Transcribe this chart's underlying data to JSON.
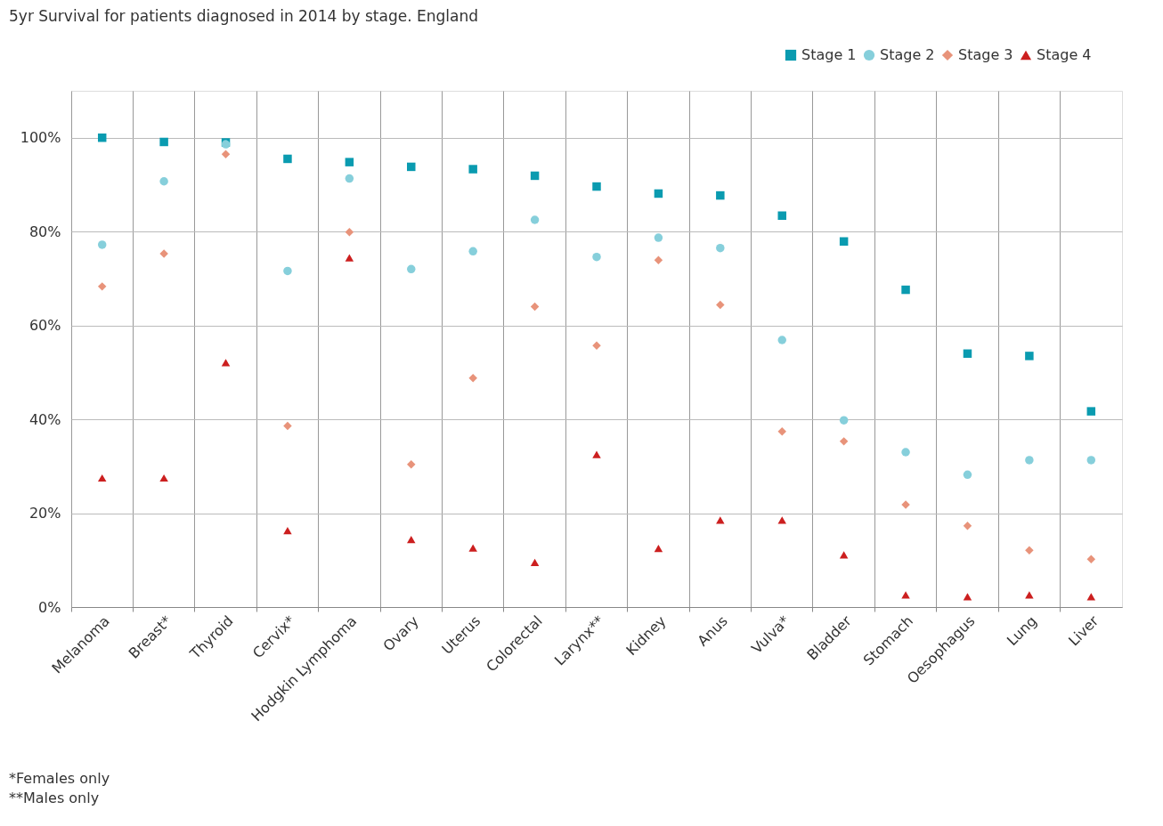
{
  "chart_data": {
    "type": "scatter",
    "title": "5yr Survival for patients diagnosed in 2014 by stage. England",
    "categories": [
      "Melanoma",
      "Breast*",
      "Thyroid",
      "Cervix*",
      "Hodgkin Lymphoma",
      "Ovary",
      "Uterus",
      "Colorectal",
      "Larynx**",
      "Kidney",
      "Anus",
      "Vulva*",
      "Bladder",
      "Stomach",
      "Oesophagus",
      "Lung",
      "Liver"
    ],
    "series": [
      {
        "name": "Stage 1",
        "color": "#0a9bb0",
        "marker": "square",
        "values": [
          100,
          99.1,
          99,
          95.5,
          94.8,
          93.8,
          93.3,
          91.9,
          89.6,
          88.1,
          87.7,
          83.4,
          77.9,
          67.6,
          54,
          53.5,
          41.7
        ]
      },
      {
        "name": "Stage 2",
        "color": "#86cfdb",
        "marker": "circle",
        "values": [
          77.2,
          90.7,
          98.6,
          71.6,
          91.3,
          72,
          75.8,
          82.5,
          74.6,
          78.7,
          76.5,
          56.9,
          39.8,
          33,
          28.2,
          31.3,
          31.3
        ]
      },
      {
        "name": "Stage 3",
        "color": "#e8937a",
        "marker": "diamond",
        "values": [
          68.3,
          75.3,
          96.5,
          38.6,
          79.9,
          30.4,
          48.8,
          64,
          55.7,
          73.9,
          64.4,
          37.4,
          35.3,
          21.8,
          17.3,
          12.1,
          10.2
        ]
      },
      {
        "name": "Stage 4",
        "color": "#cc1f1f",
        "marker": "triangle",
        "values": [
          27.5,
          27.5,
          52.1,
          16.3,
          74.4,
          14.4,
          12.6,
          9.5,
          32.5,
          12.5,
          18.5,
          18.5,
          11.1,
          2.6,
          2.2,
          2.6,
          2.2
        ]
      }
    ],
    "ylim": [
      0,
      110
    ],
    "yticks": [
      {
        "value": 0,
        "label": "0%"
      },
      {
        "value": 20,
        "label": "20%"
      },
      {
        "value": 40,
        "label": "40%"
      },
      {
        "value": 60,
        "label": "60%"
      },
      {
        "value": 80,
        "label": "80%"
      },
      {
        "value": 100,
        "label": "100%"
      }
    ],
    "grid": true,
    "legend": "top right",
    "annotations": [
      "*Females only",
      "**Males only"
    ]
  }
}
